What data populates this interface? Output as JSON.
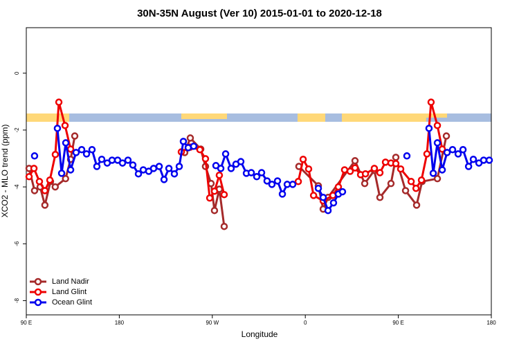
{
  "chart_data": {
    "type": "line",
    "title": "30N-35N August (Ver 10)   2015-01-01 to 2020-12-18",
    "xlabel": "Longitude",
    "ylabel": "XCO2 - MLO trend (ppm)",
    "xlim": [
      90,
      540
    ],
    "ylim": [
      -8.5,
      1.6
    ],
    "xticks": [
      {
        "value": 90,
        "label": "90 E"
      },
      180,
      {
        "value": 270,
        "label": "90 W"
      },
      {
        "value": 360,
        "label": "0"
      },
      {
        "value": 450,
        "label": "90 E"
      },
      {
        "value": 540,
        "label": "180"
      }
    ],
    "yticks": [
      0,
      -2,
      -4,
      -6,
      -8
    ],
    "legend": "bottom-left",
    "series": [
      {
        "name": "Land Nadir",
        "color": "#a52a2a",
        "x": [
          92.7,
          98,
          103.4,
          108,
          113.4,
          118,
          128,
          132.9,
          136.9,
          null,
          243.3,
          248.7,
          258.8,
          263.4,
          268.8,
          272.1,
          276.8,
          281.5,
          null,
          353.8,
          372.6,
          377.3,
          382,
          408.1,
          417.5,
          426.8,
          432.2,
          442.9,
          447.6,
          457,
          467.7,
          473,
          487.8,
          496.5
        ],
        "values": [
          -3.35,
          -4.13,
          -4.0,
          -4.64,
          -3.81,
          -4.0,
          -3.71,
          -3.03,
          -2.21,
          null,
          -2.79,
          -2.28,
          -2.67,
          -3.28,
          -3.88,
          -4.83,
          -4.08,
          -5.39,
          null,
          -3.28,
          -3.96,
          -4.78,
          -4.37,
          -3.08,
          -3.88,
          -3.42,
          -4.37,
          -3.88,
          -2.96,
          -4.13,
          -4.64,
          -3.81,
          -3.71,
          -2.21
        ]
      },
      {
        "name": "Land Glint",
        "color": "#ee0000",
        "x": [
          92.7,
          97.4,
          102.7,
          108,
          112.8,
          118.1,
          121.5,
          127.5,
          132.9,
          null,
          240,
          248.7,
          258,
          263.4,
          267.5,
          272.1,
          276.8,
          281.5,
          null,
          353.2,
          357.9,
          363.2,
          368,
          377.3,
          386.7,
          392,
          398,
          403.4,
          408.1,
          413.5,
          418.2,
          426.8,
          432.2,
          437.6,
          442.9,
          447.6,
          452.3,
          462.4,
          467.1,
          472.4,
          477.7,
          481.7,
          487.8,
          492.5
        ],
        "values": [
          -3.64,
          -3.35,
          -3.81,
          -4.13,
          -3.76,
          -2.86,
          -1.02,
          -1.84,
          -2.67,
          null,
          -2.77,
          -2.6,
          -2.69,
          -3.01,
          -4.39,
          -4.15,
          -3.59,
          -4.27,
          null,
          -3.81,
          -3.03,
          -3.37,
          -4.3,
          -4.49,
          -4.3,
          -4.0,
          -3.4,
          -3.45,
          -3.33,
          -3.57,
          -3.54,
          -3.35,
          -3.5,
          -3.13,
          -3.16,
          -3.18,
          -3.37,
          -3.81,
          -4.05,
          -3.76,
          -2.84,
          -1.02,
          -1.84,
          -2.67
        ]
      },
      {
        "name": "Ocean Glint",
        "color": "#0000ee",
        "x": [
          98,
          null,
          120.1,
          124.2,
          128.2,
          132.9,
          138.2,
          143.6,
          148.3,
          153.6,
          158.3,
          163,
          168.3,
          173,
          178.4,
          183.1,
          188.4,
          193.1,
          198.5,
          203.2,
          208.5,
          213.2,
          218.6,
          223.3,
          228,
          233.3,
          238,
          242,
          246.7,
          252,
          null,
          273.5,
          278.2,
          282.9,
          288.2,
          292.9,
          297.6,
          303,
          307.7,
          313,
          317.7,
          323,
          327.7,
          333.1,
          337.8,
          342.5,
          347.8,
          null,
          372.6,
          377.3,
          382,
          387.3,
          392,
          396,
          null,
          458.3,
          null,
          479.7,
          483.8,
          487.8,
          492.5,
          497.2,
          502.5,
          507.9,
          512.6,
          518,
          522.6,
          528,
          532.6,
          538
        ],
        "values": [
          -2.91,
          null,
          -1.94,
          -3.52,
          -2.45,
          -3.4,
          -2.79,
          -2.69,
          -2.84,
          -2.69,
          -3.28,
          -3.03,
          -3.16,
          -3.06,
          -3.06,
          -3.16,
          -3.06,
          -3.23,
          -3.54,
          -3.4,
          -3.45,
          -3.35,
          -3.28,
          -3.74,
          -3.35,
          -3.54,
          -3.28,
          -2.4,
          -2.62,
          -2.57,
          null,
          -3.25,
          -3.35,
          -2.84,
          -3.35,
          -3.2,
          -3.11,
          -3.52,
          -3.5,
          -3.64,
          -3.5,
          -3.79,
          -3.91,
          -3.79,
          -4.25,
          -3.91,
          -3.91,
          null,
          -4.05,
          -4.37,
          -4.83,
          -4.56,
          -4.25,
          -4.17,
          null,
          -2.91,
          null,
          -1.94,
          -3.52,
          -2.45,
          -3.4,
          -2.79,
          -2.69,
          -2.84,
          -2.69,
          -3.28,
          -3.03,
          -3.16,
          -3.06,
          -3.06
        ]
      }
    ]
  }
}
